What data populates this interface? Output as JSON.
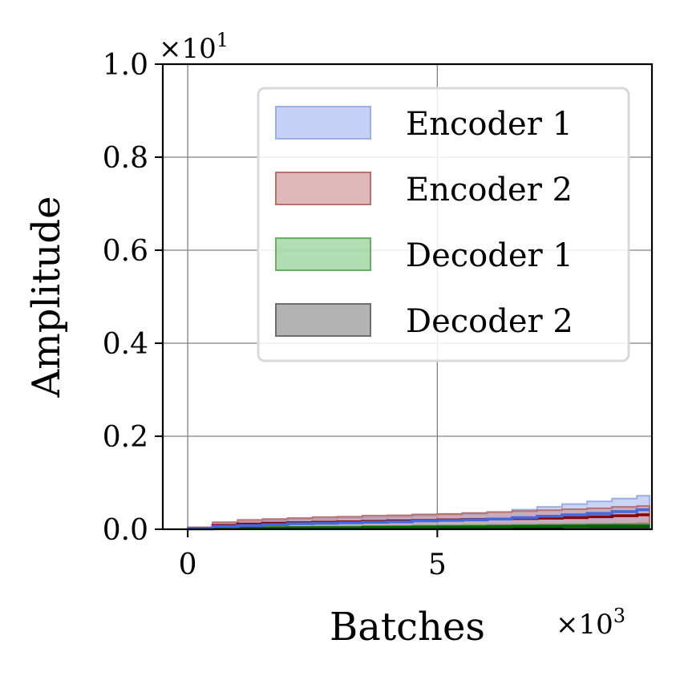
{
  "chart_data": {
    "type": "area",
    "xlabel": "Batches",
    "ylabel": "Amplitude",
    "x_multiplier": "×10",
    "x_multiplier_exp": "3",
    "y_multiplier": "×10",
    "y_multiplier_exp": "1",
    "xlim": [
      -0.5,
      9.3
    ],
    "ylim": [
      0.0,
      1.0
    ],
    "x_ticks": [
      0,
      5
    ],
    "x_tick_labels": [
      "0",
      "5"
    ],
    "y_ticks": [
      0.0,
      0.2,
      0.4,
      0.6,
      0.8,
      1.0
    ],
    "y_tick_labels": [
      "0.0",
      "0.2",
      "0.4",
      "0.6",
      "0.8",
      "1.0"
    ],
    "grid": true,
    "legend_position": "top-right",
    "x": [
      0,
      0.5,
      1,
      1.5,
      2,
      2.5,
      3,
      3.5,
      4,
      4.5,
      5,
      5.5,
      6,
      6.5,
      7,
      7.5,
      8,
      8.5,
      9
    ],
    "series": [
      {
        "name": "Encoder 1",
        "line_color": "#4169e1",
        "fill_color": "#9fb2ec",
        "fill_edge": "#9aaee8",
        "mean": [
          0.002,
          0.006,
          0.008,
          0.01,
          0.012,
          0.013,
          0.014,
          0.015,
          0.016,
          0.018,
          0.019,
          0.02,
          0.022,
          0.025,
          0.028,
          0.031,
          0.034,
          0.038,
          0.042
        ],
        "upper": [
          0.004,
          0.012,
          0.016,
          0.019,
          0.021,
          0.022,
          0.024,
          0.025,
          0.027,
          0.029,
          0.031,
          0.033,
          0.037,
          0.042,
          0.048,
          0.054,
          0.06,
          0.066,
          0.072
        ],
        "lower": [
          0.0,
          0.001,
          0.002,
          0.003,
          0.004,
          0.004,
          0.005,
          0.005,
          0.006,
          0.006,
          0.007,
          0.007,
          0.008,
          0.008,
          0.009,
          0.01,
          0.011,
          0.012,
          0.013
        ]
      },
      {
        "name": "Encoder 2",
        "line_color": "#8b0000",
        "fill_color": "#c98a8a",
        "fill_edge": "#b87070",
        "mean": [
          0.002,
          0.008,
          0.011,
          0.013,
          0.014,
          0.015,
          0.016,
          0.017,
          0.018,
          0.019,
          0.02,
          0.021,
          0.022,
          0.023,
          0.024,
          0.025,
          0.027,
          0.029,
          0.031
        ],
        "upper": [
          0.004,
          0.015,
          0.02,
          0.022,
          0.024,
          0.026,
          0.027,
          0.029,
          0.03,
          0.032,
          0.033,
          0.035,
          0.037,
          0.039,
          0.041,
          0.043,
          0.045,
          0.048,
          0.05
        ],
        "lower": [
          0.0,
          0.002,
          0.003,
          0.004,
          0.005,
          0.005,
          0.006,
          0.006,
          0.007,
          0.007,
          0.008,
          0.008,
          0.009,
          0.009,
          0.01,
          0.01,
          0.011,
          0.012,
          0.013
        ]
      },
      {
        "name": "Decoder 1",
        "line_color": "#006400",
        "fill_color": "#7fc77f",
        "fill_edge": "#66b066",
        "mean": [
          0.001,
          0.002,
          0.002,
          0.003,
          0.003,
          0.003,
          0.003,
          0.004,
          0.004,
          0.004,
          0.005,
          0.005,
          0.005,
          0.006,
          0.006,
          0.006,
          0.007,
          0.007,
          0.007
        ],
        "upper": [
          0.002,
          0.004,
          0.004,
          0.005,
          0.005,
          0.006,
          0.006,
          0.007,
          0.007,
          0.008,
          0.008,
          0.009,
          0.009,
          0.01,
          0.01,
          0.011,
          0.011,
          0.012,
          0.012
        ],
        "lower": [
          0.0,
          0.0,
          0.001,
          0.001,
          0.001,
          0.001,
          0.001,
          0.001,
          0.002,
          0.002,
          0.002,
          0.002,
          0.002,
          0.002,
          0.003,
          0.003,
          0.003,
          0.003,
          0.003
        ]
      },
      {
        "name": "Decoder 2",
        "line_color": "#000000",
        "fill_color": "#808080",
        "fill_edge": "#6e6e6e",
        "mean": [
          0.001,
          0.002,
          0.002,
          0.002,
          0.003,
          0.003,
          0.003,
          0.003,
          0.004,
          0.004,
          0.004,
          0.004,
          0.005,
          0.005,
          0.005,
          0.006,
          0.006,
          0.006,
          0.006
        ],
        "upper": [
          0.002,
          0.003,
          0.004,
          0.004,
          0.005,
          0.005,
          0.005,
          0.006,
          0.006,
          0.007,
          0.007,
          0.007,
          0.008,
          0.008,
          0.009,
          0.009,
          0.01,
          0.01,
          0.01
        ],
        "lower": [
          0.0,
          0.0,
          0.0,
          0.001,
          0.001,
          0.001,
          0.001,
          0.001,
          0.001,
          0.001,
          0.002,
          0.002,
          0.002,
          0.002,
          0.002,
          0.002,
          0.002,
          0.002,
          0.002
        ]
      }
    ]
  }
}
